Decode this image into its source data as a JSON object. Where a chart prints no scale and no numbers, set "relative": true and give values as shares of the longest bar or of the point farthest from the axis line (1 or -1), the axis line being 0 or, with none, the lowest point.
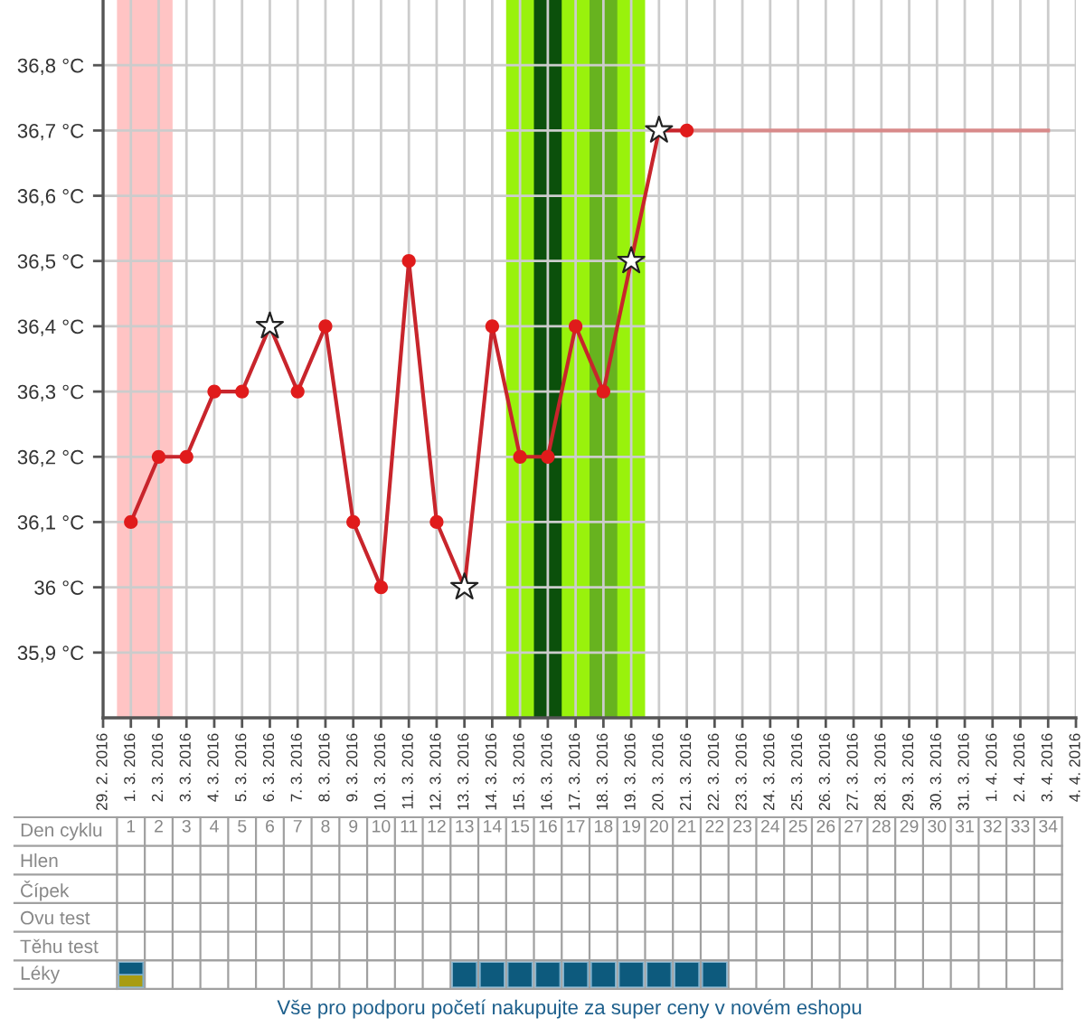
{
  "chart_data": [
    {
      "type": "line",
      "xlim": [
        "2016-02-29",
        "2016-04-04"
      ],
      "xticks": [
        {
          "value": "2016-02-29",
          "label": "29. 2. 2016"
        },
        {
          "value": "2016-03-01",
          "label": "1. 3. 2016"
        },
        {
          "value": "2016-03-02",
          "label": "2. 3. 2016"
        },
        {
          "value": "2016-03-03",
          "label": "3. 3. 2016"
        },
        {
          "value": "2016-03-04",
          "label": "4. 3. 2016"
        },
        {
          "value": "2016-03-05",
          "label": "5. 3. 2016"
        },
        {
          "value": "2016-03-06",
          "label": "6. 3. 2016"
        },
        {
          "value": "2016-03-07",
          "label": "7. 3. 2016"
        },
        {
          "value": "2016-03-08",
          "label": "8. 3. 2016"
        },
        {
          "value": "2016-03-09",
          "label": "9. 3. 2016"
        },
        {
          "value": "2016-03-10",
          "label": "10. 3. 2016"
        },
        {
          "value": "2016-03-11",
          "label": "11. 3. 2016"
        },
        {
          "value": "2016-03-12",
          "label": "12. 3. 2016"
        },
        {
          "value": "2016-03-13",
          "label": "13. 3. 2016"
        },
        {
          "value": "2016-03-14",
          "label": "14. 3. 2016"
        },
        {
          "value": "2016-03-15",
          "label": "15. 3. 2016"
        },
        {
          "value": "2016-03-16",
          "label": "16. 3. 2016"
        },
        {
          "value": "2016-03-17",
          "label": "17. 3. 2016"
        },
        {
          "value": "2016-03-18",
          "label": "18. 3. 2016"
        },
        {
          "value": "2016-03-19",
          "label": "19. 3. 2016"
        },
        {
          "value": "2016-03-20",
          "label": "20. 3. 2016"
        },
        {
          "value": "2016-03-21",
          "label": "21. 3. 2016"
        },
        {
          "value": "2016-03-22",
          "label": "22. 3. 2016"
        },
        {
          "value": "2016-03-23",
          "label": "23. 3. 2016"
        },
        {
          "value": "2016-03-24",
          "label": "24. 3. 2016"
        },
        {
          "value": "2016-03-25",
          "label": "25. 3. 2016"
        },
        {
          "value": "2016-03-26",
          "label": "26. 3. 2016"
        },
        {
          "value": "2016-03-27",
          "label": "27. 3. 2016"
        },
        {
          "value": "2016-03-28",
          "label": "28. 3. 2016"
        },
        {
          "value": "2016-03-29",
          "label": "29. 3. 2016"
        },
        {
          "value": "2016-03-30",
          "label": "30. 3. 2016"
        },
        {
          "value": "2016-03-31",
          "label": "31. 3. 2016"
        },
        {
          "value": "2016-04-01",
          "label": "1. 4. 2016"
        },
        {
          "value": "2016-04-02",
          "label": "2. 4. 2016"
        },
        {
          "value": "2016-04-03",
          "label": "3. 4. 2016"
        },
        {
          "value": "2016-04-04",
          "label": "4. 4. 2016"
        }
      ],
      "ylim": [
        35.8,
        36.9
      ],
      "yticks": [
        {
          "value": 35.9,
          "label": "35,9 °C"
        },
        {
          "value": 36.0,
          "label": "36 °C"
        },
        {
          "value": 36.1,
          "label": "36,1 °C"
        },
        {
          "value": 36.2,
          "label": "36,2 °C"
        },
        {
          "value": 36.3,
          "label": "36,3 °C"
        },
        {
          "value": 36.4,
          "label": "36,4 °C"
        },
        {
          "value": 36.5,
          "label": "36,5 °C"
        },
        {
          "value": 36.6,
          "label": "36,6 °C"
        },
        {
          "value": 36.7,
          "label": "36,7 °C"
        },
        {
          "value": 36.8,
          "label": "36,8 °C"
        }
      ],
      "grid": true,
      "bands": [
        {
          "axis": "x",
          "from": "2016-02-29T12:00",
          "to": "2016-03-02T12:00",
          "color": "#ffc4c4"
        },
        {
          "axis": "x",
          "from": "2016-03-14T12:00",
          "to": "2016-03-19T12:00",
          "color": "#99f20c"
        },
        {
          "axis": "x",
          "from": "2016-03-15T12:00",
          "to": "2016-03-16T12:00",
          "color": "#0b500b"
        },
        {
          "axis": "x",
          "from": "2016-03-17T12:00",
          "to": "2016-03-18T12:00",
          "color": "#67b31f"
        }
      ],
      "series": [
        {
          "type": "line",
          "marker": "none",
          "color": "#c8252c",
          "x": [
            "2016-03-01",
            "2016-03-02",
            "2016-03-03",
            "2016-03-04",
            "2016-03-05",
            "2016-03-06",
            "2016-03-07",
            "2016-03-08",
            "2016-03-09",
            "2016-03-10",
            "2016-03-11",
            "2016-03-12",
            "2016-03-13",
            "2016-03-14",
            "2016-03-15",
            "2016-03-16",
            "2016-03-17",
            "2016-03-18",
            "2016-03-19",
            "2016-03-20",
            "2016-03-21"
          ],
          "values": [
            36.1,
            36.2,
            36.2,
            36.3,
            36.3,
            36.4,
            36.3,
            36.4,
            36.1,
            36.0,
            36.5,
            36.1,
            36.0,
            36.4,
            36.2,
            36.2,
            36.4,
            36.3,
            36.5,
            36.7,
            36.7
          ]
        },
        {
          "type": "line",
          "marker": "none",
          "color": "#d88a8a",
          "x": [
            "2016-03-21",
            "2016-04-03"
          ],
          "values": [
            36.7,
            36.7
          ]
        },
        {
          "type": "scatter",
          "marker": "circle",
          "color": "#e01b1b",
          "x": [
            "2016-03-01",
            "2016-03-02",
            "2016-03-03",
            "2016-03-04",
            "2016-03-05",
            "2016-03-07",
            "2016-03-08",
            "2016-03-09",
            "2016-03-10",
            "2016-03-11",
            "2016-03-12",
            "2016-03-14",
            "2016-03-15",
            "2016-03-16",
            "2016-03-17",
            "2016-03-18",
            "2016-03-21"
          ],
          "values": [
            36.1,
            36.2,
            36.2,
            36.3,
            36.3,
            36.3,
            36.4,
            36.1,
            36.0,
            36.5,
            36.1,
            36.4,
            36.2,
            36.2,
            36.4,
            36.3,
            36.7
          ]
        },
        {
          "type": "scatter",
          "marker": "star",
          "color": "#ffffff",
          "x": [
            "2016-03-06",
            "2016-03-13",
            "2016-03-19",
            "2016-03-20"
          ],
          "values": [
            36.4,
            36.0,
            36.5,
            36.7
          ]
        }
      ]
    },
    {
      "type": "heatmap",
      "xlabel": "Den cyklu",
      "categories": [
        "1",
        "2",
        "3",
        "4",
        "5",
        "6",
        "7",
        "8",
        "9",
        "10",
        "11",
        "12",
        "13",
        "14",
        "15",
        "16",
        "17",
        "18",
        "19",
        "20",
        "21",
        "22",
        "23",
        "24",
        "25",
        "26",
        "27",
        "28",
        "29",
        "30",
        "31",
        "32",
        "33",
        "34"
      ],
      "y_categories": [
        "Hlen",
        "Čípek",
        "Ovu test",
        "Těhu test"
      ],
      "cells": [
        [
          null,
          null,
          null,
          null,
          null,
          null,
          null,
          null,
          null,
          null,
          null,
          null,
          null,
          null,
          null,
          null,
          null,
          null,
          null,
          null,
          null,
          null,
          null,
          null,
          null,
          null,
          null,
          null,
          null,
          null,
          null,
          null,
          null,
          null
        ],
        [
          null,
          null,
          null,
          null,
          null,
          null,
          null,
          null,
          null,
          null,
          null,
          null,
          null,
          null,
          null,
          null,
          null,
          null,
          null,
          null,
          null,
          null,
          null,
          null,
          null,
          null,
          null,
          null,
          null,
          null,
          null,
          null,
          null,
          null
        ],
        [
          null,
          null,
          null,
          null,
          null,
          null,
          null,
          null,
          null,
          null,
          null,
          null,
          null,
          null,
          null,
          null,
          null,
          null,
          null,
          null,
          null,
          null,
          null,
          null,
          null,
          null,
          null,
          null,
          null,
          null,
          null,
          null,
          null,
          null
        ],
        [
          null,
          null,
          null,
          null,
          null,
          null,
          null,
          null,
          null,
          null,
          null,
          null,
          null,
          null,
          null,
          null,
          null,
          null,
          null,
          null,
          null,
          null,
          null,
          null,
          null,
          null,
          null,
          null,
          null,
          null,
          null,
          null,
          null,
          null
        ]
      ],
      "annotations": [
        "Vše pro podporu početí nakupujte za super ceny v novém eshopu"
      ]
    },
    {
      "type": "bar",
      "stacked": true,
      "relative": true,
      "tick_labels": false,
      "ylabel": "Léky",
      "categories": [
        "1",
        "2",
        "3",
        "4",
        "5",
        "6",
        "7",
        "8",
        "9",
        "10",
        "11",
        "12",
        "13",
        "14",
        "15",
        "16",
        "17",
        "18",
        "19",
        "20",
        "21",
        "22",
        "23",
        "24",
        "25",
        "26",
        "27",
        "28",
        "29",
        "30",
        "31",
        "32",
        "33",
        "34"
      ],
      "series": [
        {
          "color": "#a89c12",
          "values": [
            0.5,
            null,
            null,
            null,
            null,
            null,
            null,
            null,
            null,
            null,
            null,
            null,
            null,
            null,
            null,
            null,
            null,
            null,
            null,
            null,
            null,
            null,
            null,
            null,
            null,
            null,
            null,
            null,
            null,
            null,
            null,
            null,
            null,
            null
          ]
        },
        {
          "color": "#0d5a7d",
          "values": [
            0.5,
            null,
            null,
            null,
            null,
            null,
            null,
            null,
            null,
            null,
            null,
            null,
            1,
            1,
            1,
            1,
            1,
            1,
            1,
            1,
            1,
            1,
            null,
            null,
            null,
            null,
            null,
            null,
            null,
            null,
            null,
            null,
            null,
            null
          ]
        }
      ]
    }
  ]
}
